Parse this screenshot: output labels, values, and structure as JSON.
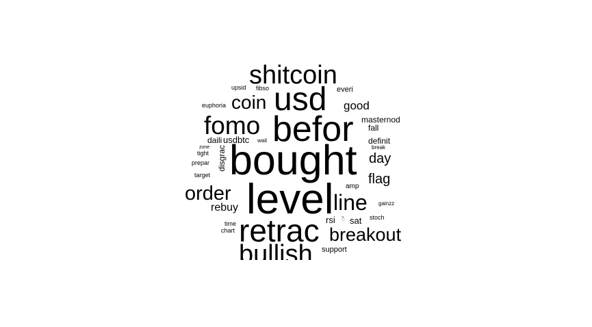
{
  "wordcloud": {
    "text_color": "#000000",
    "background": "#ffffff",
    "words": [
      "shitcoin",
      "usd",
      "coin",
      "upsid",
      "fibso",
      "everi",
      "euphoria",
      "good",
      "fomo",
      "befor",
      "masternod",
      "fall",
      "daili",
      "usdbtc",
      "wait",
      "definit",
      "zone",
      "break",
      "tight",
      "bought",
      "prepar",
      "disgrac",
      "day",
      "target",
      "flag",
      "amp",
      "order",
      "level",
      "line",
      "rebuy",
      "gainzz",
      "time",
      "rsi",
      "sat",
      "stoch",
      "chart",
      "retrac",
      "breakout",
      "bullish",
      "support"
    ]
  }
}
